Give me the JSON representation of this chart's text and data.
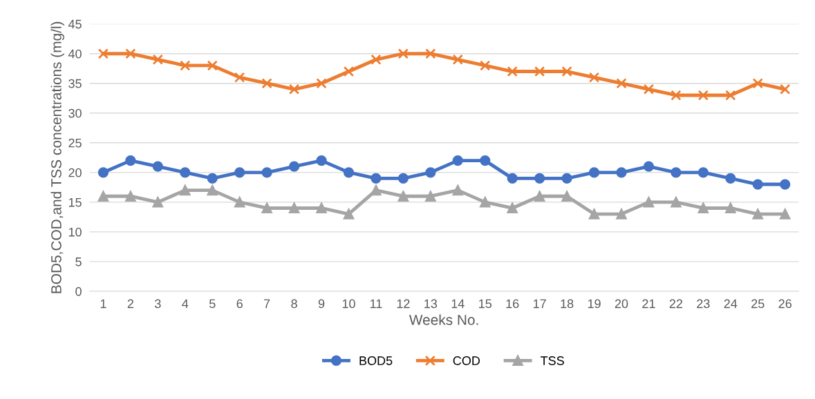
{
  "chart_data": {
    "type": "line",
    "xlabel": "Weeks No.",
    "ylabel": "BOD5,COD,and TSS concentrations (mg/l)",
    "categories": [
      "1",
      "2",
      "3",
      "4",
      "5",
      "6",
      "7",
      "8",
      "9",
      "10",
      "11",
      "12",
      "13",
      "14",
      "15",
      "16",
      "17",
      "18",
      "19",
      "20",
      "21",
      "22",
      "23",
      "24",
      "25",
      "26"
    ],
    "series": [
      {
        "name": "BOD5",
        "color": "#4472c4",
        "marker": "circle",
        "values": [
          20,
          22,
          21,
          20,
          19,
          20,
          20,
          21,
          22,
          20,
          19,
          19,
          20,
          22,
          22,
          19,
          19,
          19,
          20,
          20,
          21,
          20,
          20,
          19,
          18,
          18
        ]
      },
      {
        "name": "COD",
        "color": "#ed7d31",
        "marker": "cross",
        "values": [
          40,
          40,
          39,
          38,
          38,
          36,
          35,
          34,
          35,
          37,
          39,
          40,
          40,
          39,
          38,
          37,
          37,
          37,
          36,
          35,
          34,
          33,
          33,
          33,
          35,
          34
        ]
      },
      {
        "name": "TSS",
        "color": "#a5a5a5",
        "marker": "triangle",
        "values": [
          16,
          16,
          15,
          17,
          17,
          15,
          14,
          14,
          14,
          13,
          17,
          16,
          16,
          17,
          15,
          14,
          16,
          16,
          13,
          13,
          15,
          15,
          14,
          14,
          13,
          13
        ]
      }
    ],
    "ylim": [
      0,
      45
    ],
    "yticks": [
      0,
      5,
      10,
      15,
      20,
      25,
      30,
      35,
      40,
      45
    ],
    "grid": "y",
    "legend": "bottom",
    "line_style": "solid"
  }
}
